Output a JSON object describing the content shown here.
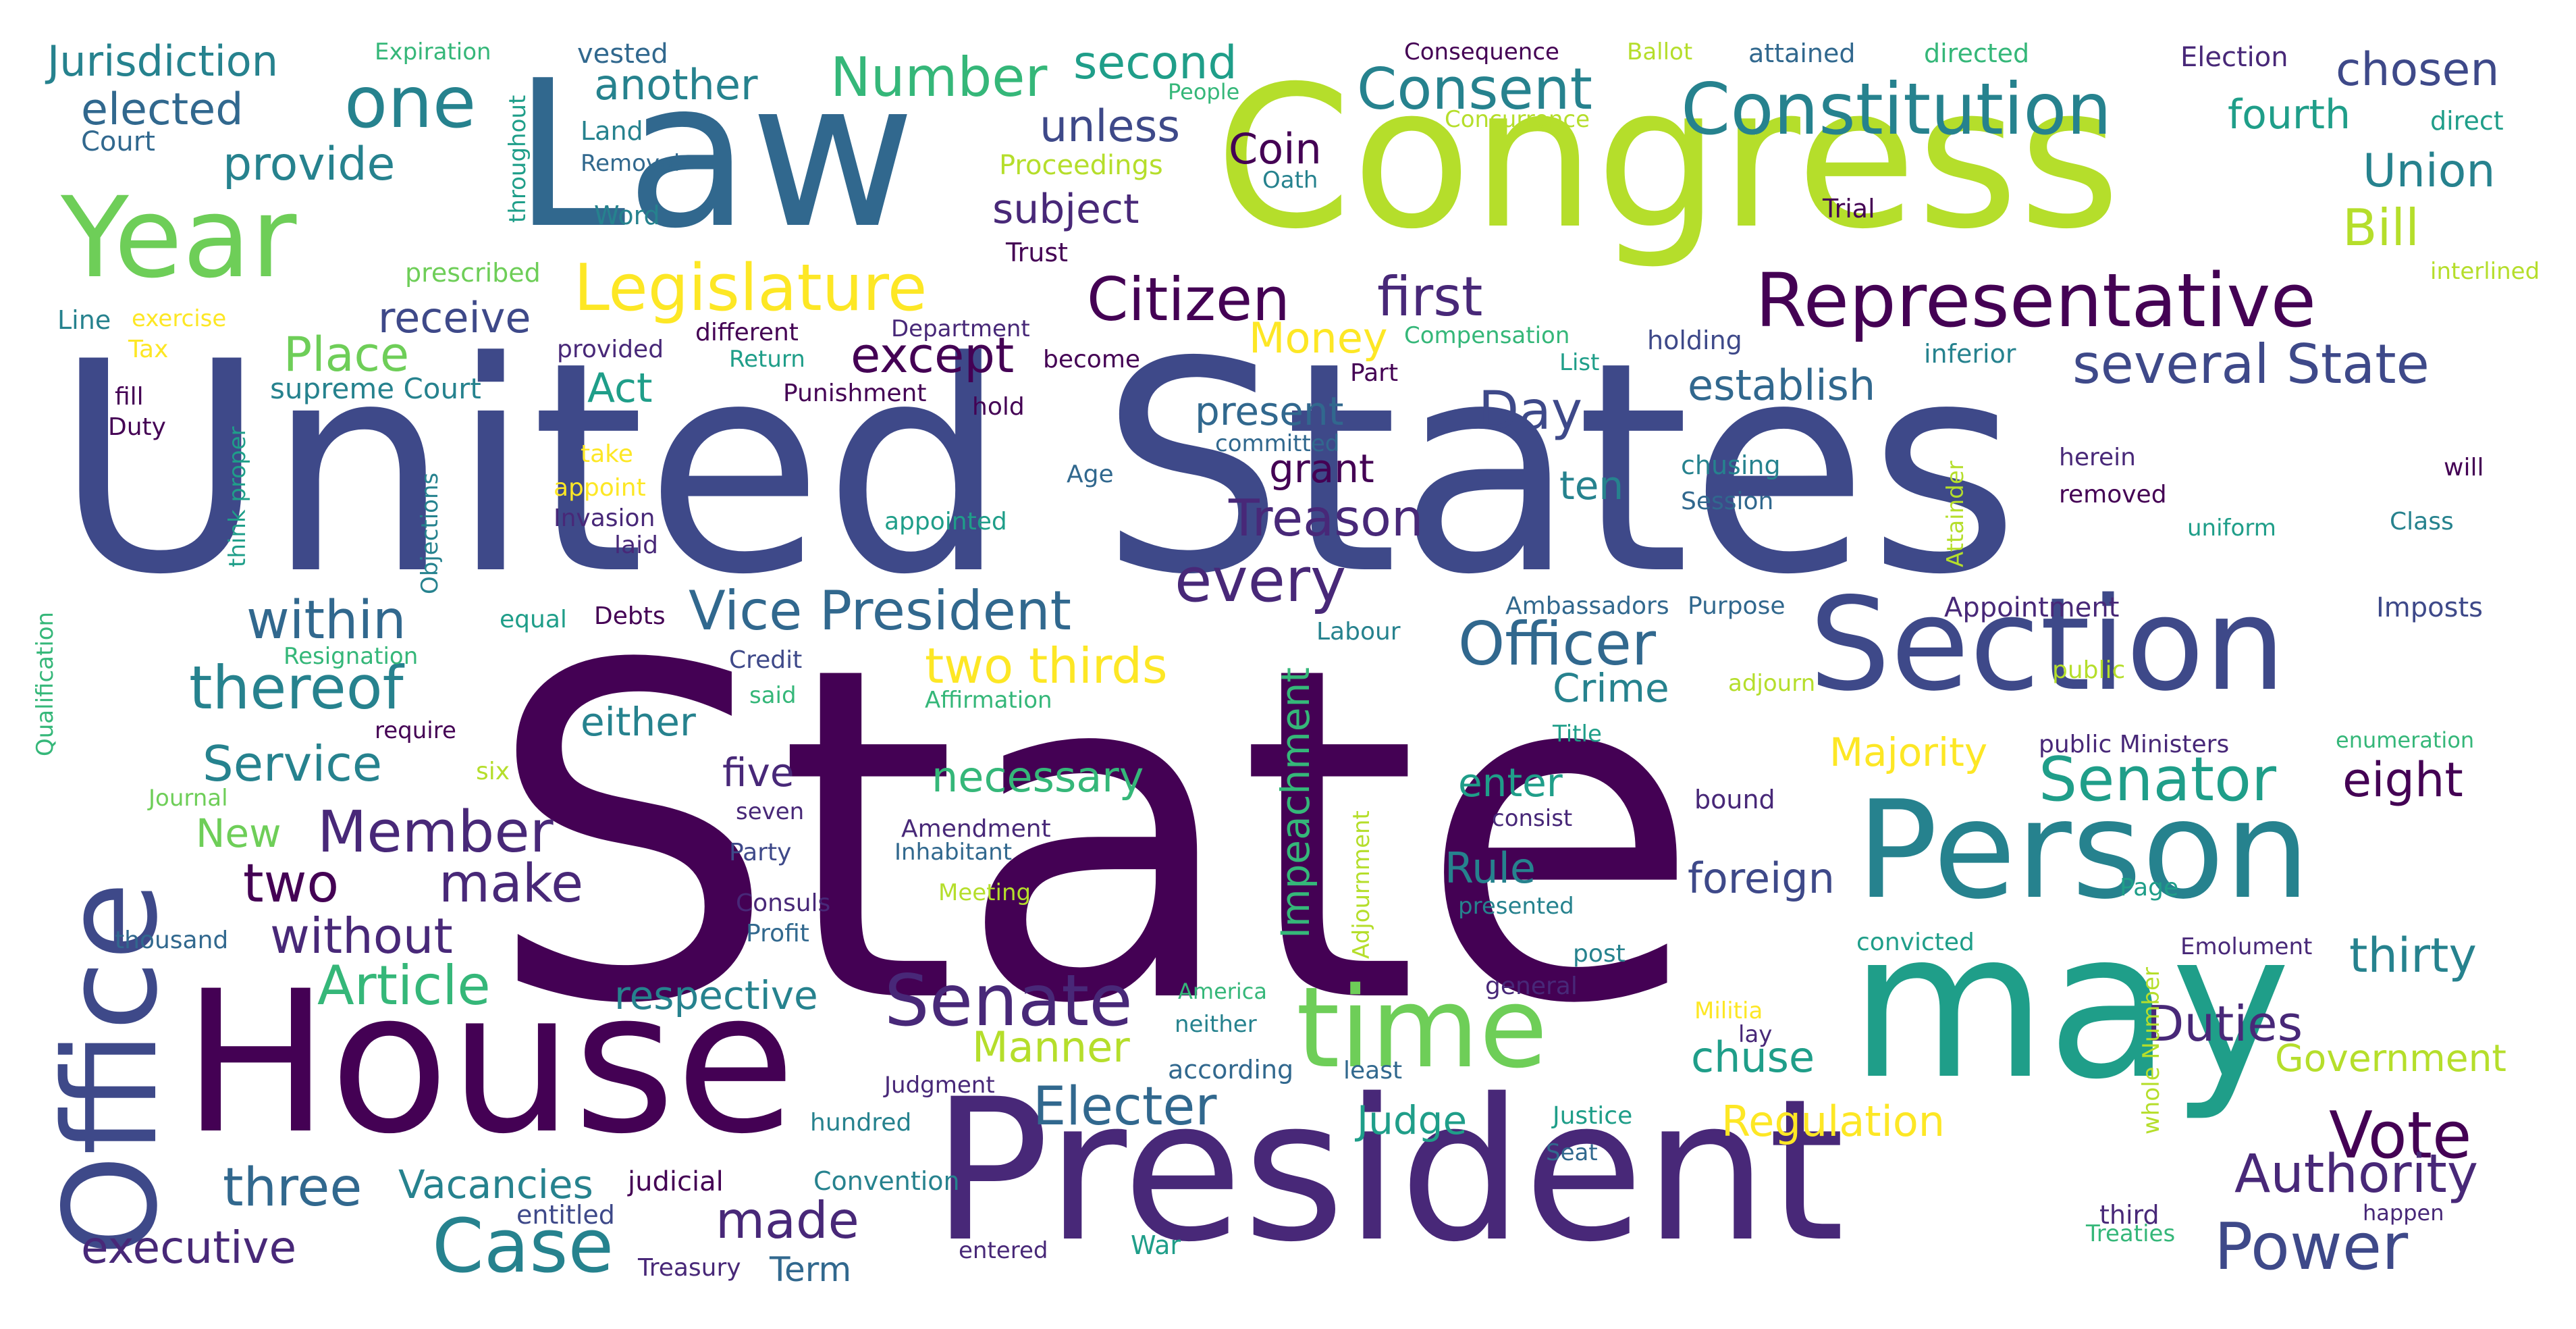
{
  "image": {
    "kind": "word cloud",
    "palette": [
      "#440154",
      "#482878",
      "#3e4989",
      "#31688e",
      "#26828e",
      "#1f9e89",
      "#35b779",
      "#6ece58",
      "#b5de2b",
      "#fde725"
    ]
  },
  "words": [
    {
      "text": "State",
      "color": "#440154"
    },
    {
      "text": "United States",
      "color": "#3e4989"
    },
    {
      "text": "Congress",
      "color": "#b5de2b"
    },
    {
      "text": "Law",
      "color": "#31688e"
    },
    {
      "text": "President",
      "color": "#482878"
    },
    {
      "text": "House",
      "color": "#440154"
    },
    {
      "text": "may",
      "color": "#1f9e89"
    },
    {
      "text": "Office",
      "color": "#3e4989"
    },
    {
      "text": "Person",
      "color": "#26828e"
    },
    {
      "text": "Section",
      "color": "#3e4989"
    },
    {
      "text": "Year",
      "color": "#6ece58"
    },
    {
      "text": "time",
      "color": "#6ece58"
    },
    {
      "text": "Representative",
      "color": "#440154"
    },
    {
      "text": "Constitution",
      "color": "#26828e"
    },
    {
      "text": "one",
      "color": "#26828e"
    },
    {
      "text": "Senate",
      "color": "#482878"
    },
    {
      "text": "Case",
      "color": "#26828e"
    },
    {
      "text": "Legislature",
      "color": "#fde725"
    },
    {
      "text": "Consent",
      "color": "#26828e"
    },
    {
      "text": "Citizen",
      "color": "#440154"
    },
    {
      "text": "Officer",
      "color": "#31688e"
    },
    {
      "text": "Vice President",
      "color": "#31688e"
    },
    {
      "text": "Member",
      "color": "#482878"
    },
    {
      "text": "Senator",
      "color": "#1f9e89"
    },
    {
      "text": "several State",
      "color": "#3e4989"
    },
    {
      "text": "Power",
      "color": "#3e4989"
    },
    {
      "text": "Number",
      "color": "#35b779"
    },
    {
      "text": "thereof",
      "color": "#26828e"
    },
    {
      "text": "every",
      "color": "#482878"
    },
    {
      "text": "Treason",
      "color": "#482878"
    },
    {
      "text": "Vote",
      "color": "#440154"
    },
    {
      "text": "Authority",
      "color": "#482878"
    },
    {
      "text": "Electer",
      "color": "#31688e"
    },
    {
      "text": "Article",
      "color": "#35b779"
    },
    {
      "text": "make",
      "color": "#482878"
    },
    {
      "text": "two",
      "color": "#440154"
    },
    {
      "text": "three",
      "color": "#31688e"
    },
    {
      "text": "made",
      "color": "#482878"
    },
    {
      "text": "Duties",
      "color": "#482878"
    },
    {
      "text": "Day",
      "color": "#3e4989"
    },
    {
      "text": "first",
      "color": "#482878"
    },
    {
      "text": "second",
      "color": "#1f9e89"
    },
    {
      "text": "chosen",
      "color": "#3e4989"
    },
    {
      "text": "Union",
      "color": "#26828e"
    },
    {
      "text": "Bill",
      "color": "#b5de2b"
    },
    {
      "text": "Jurisdiction",
      "color": "#26828e"
    },
    {
      "text": "another",
      "color": "#26828e"
    },
    {
      "text": "elected",
      "color": "#31688e"
    },
    {
      "text": "provide",
      "color": "#26828e"
    },
    {
      "text": "unless",
      "color": "#3e4989"
    },
    {
      "text": "subject",
      "color": "#482878"
    },
    {
      "text": "fourth",
      "color": "#1f9e89"
    },
    {
      "text": "Coin",
      "color": "#440154"
    },
    {
      "text": "receive",
      "color": "#3e4989"
    },
    {
      "text": "Place",
      "color": "#6ece58"
    },
    {
      "text": "except",
      "color": "#440154"
    },
    {
      "text": "Money",
      "color": "#fde725"
    },
    {
      "text": "establish",
      "color": "#31688e"
    },
    {
      "text": "Act",
      "color": "#1f9e89"
    },
    {
      "text": "present",
      "color": "#31688e"
    },
    {
      "text": "grant",
      "color": "#440154"
    },
    {
      "text": "ten",
      "color": "#26828e"
    },
    {
      "text": "within",
      "color": "#31688e"
    },
    {
      "text": "two thirds",
      "color": "#fde725"
    },
    {
      "text": "Service",
      "color": "#26828e"
    },
    {
      "text": "either",
      "color": "#26828e"
    },
    {
      "text": "Crime",
      "color": "#26828e"
    },
    {
      "text": "necessary",
      "color": "#35b779"
    },
    {
      "text": "Majority",
      "color": "#fde725"
    },
    {
      "text": "eight",
      "color": "#440154"
    },
    {
      "text": "five",
      "color": "#482878"
    },
    {
      "text": "enter",
      "color": "#1f9e89"
    },
    {
      "text": "Rule",
      "color": "#26828e"
    },
    {
      "text": "foreign",
      "color": "#3e4989"
    },
    {
      "text": "without",
      "color": "#482878"
    },
    {
      "text": "New",
      "color": "#6ece58"
    },
    {
      "text": "respective",
      "color": "#26828e"
    },
    {
      "text": "Manner",
      "color": "#b5de2b"
    },
    {
      "text": "chuse",
      "color": "#1f9e89"
    },
    {
      "text": "thirty",
      "color": "#26828e"
    },
    {
      "text": "Government",
      "color": "#b5de2b"
    },
    {
      "text": "Regulation",
      "color": "#fde725"
    },
    {
      "text": "Judge",
      "color": "#1f9e89"
    },
    {
      "text": "Vacancies",
      "color": "#26828e"
    },
    {
      "text": "executive",
      "color": "#482878"
    },
    {
      "text": "Term",
      "color": "#31688e"
    },
    {
      "text": "Impeachment",
      "color": "#35b779"
    },
    {
      "text": "Adjournment",
      "color": "#b5de2b"
    },
    {
      "text": "throughout",
      "color": "#1f9e89"
    },
    {
      "text": "Qualification",
      "color": "#35b779"
    },
    {
      "text": "Objections",
      "color": "#26828e"
    },
    {
      "text": "think proper",
      "color": "#1f9e89"
    },
    {
      "text": "Attainder",
      "color": "#b5de2b"
    },
    {
      "text": "whole Number",
      "color": "#b5de2b"
    },
    {
      "text": "Expiration",
      "color": "#35b779"
    },
    {
      "text": "vested",
      "color": "#31688e"
    },
    {
      "text": "Consequence",
      "color": "#440154"
    },
    {
      "text": "Ballot",
      "color": "#b5de2b"
    },
    {
      "text": "attained",
      "color": "#31688e"
    },
    {
      "text": "directed",
      "color": "#35b779"
    },
    {
      "text": "Election",
      "color": "#482878"
    },
    {
      "text": "Land",
      "color": "#26828e"
    },
    {
      "text": "Removal",
      "color": "#31688e"
    },
    {
      "text": "People",
      "color": "#35b779"
    },
    {
      "text": "Concurrence",
      "color": "#b5de2b"
    },
    {
      "text": "direct",
      "color": "#1f9e89"
    },
    {
      "text": "Court",
      "color": "#31688e"
    },
    {
      "text": "Proceedings",
      "color": "#b5de2b"
    },
    {
      "text": "Oath",
      "color": "#26828e"
    },
    {
      "text": "Word",
      "color": "#26828e"
    },
    {
      "text": "Trial",
      "color": "#440154"
    },
    {
      "text": "Trust",
      "color": "#440154"
    },
    {
      "text": "prescribed",
      "color": "#6ece58"
    },
    {
      "text": "interlined",
      "color": "#b5de2b"
    },
    {
      "text": "Line",
      "color": "#26828e"
    },
    {
      "text": "exercise",
      "color": "#fde725"
    },
    {
      "text": "different",
      "color": "#440154"
    },
    {
      "text": "Department",
      "color": "#482878"
    },
    {
      "text": "Compensation",
      "color": "#35b779"
    },
    {
      "text": "holding",
      "color": "#3e4989"
    },
    {
      "text": "Tax",
      "color": "#fde725"
    },
    {
      "text": "provided",
      "color": "#482878"
    },
    {
      "text": "Return",
      "color": "#1f9e89"
    },
    {
      "text": "become",
      "color": "#440154"
    },
    {
      "text": "List",
      "color": "#1f9e89"
    },
    {
      "text": "inferior",
      "color": "#26828e"
    },
    {
      "text": "fill",
      "color": "#440154"
    },
    {
      "text": "supreme Court",
      "color": "#26828e"
    },
    {
      "text": "Punishment",
      "color": "#440154"
    },
    {
      "text": "Part",
      "color": "#440154"
    },
    {
      "text": "hold",
      "color": "#440154"
    },
    {
      "text": "Duty",
      "color": "#440154"
    },
    {
      "text": "take",
      "color": "#fde725"
    },
    {
      "text": "committed",
      "color": "#31688e"
    },
    {
      "text": "chusing",
      "color": "#26828e"
    },
    {
      "text": "herein",
      "color": "#482878"
    },
    {
      "text": "will",
      "color": "#440154"
    },
    {
      "text": "Age",
      "color": "#31688e"
    },
    {
      "text": "appoint",
      "color": "#fde725"
    },
    {
      "text": "Session",
      "color": "#31688e"
    },
    {
      "text": "removed",
      "color": "#440154"
    },
    {
      "text": "Invasion",
      "color": "#482878"
    },
    {
      "text": "appointed",
      "color": "#1f9e89"
    },
    {
      "text": "uniform",
      "color": "#1f9e89"
    },
    {
      "text": "Class",
      "color": "#26828e"
    },
    {
      "text": "laid",
      "color": "#482878"
    },
    {
      "text": "Ambassadors",
      "color": "#31688e"
    },
    {
      "text": "Purpose",
      "color": "#31688e"
    },
    {
      "text": "Appointment",
      "color": "#482878"
    },
    {
      "text": "Imposts",
      "color": "#3e4989"
    },
    {
      "text": "equal",
      "color": "#1f9e89"
    },
    {
      "text": "Debts",
      "color": "#440154"
    },
    {
      "text": "Labour",
      "color": "#26828e"
    },
    {
      "text": "Resignation",
      "color": "#35b779"
    },
    {
      "text": "Credit",
      "color": "#3e4989"
    },
    {
      "text": "adjourn",
      "color": "#b5de2b"
    },
    {
      "text": "public",
      "color": "#b5de2b"
    },
    {
      "text": "said",
      "color": "#35b779"
    },
    {
      "text": "Affirmation",
      "color": "#35b779"
    },
    {
      "text": "require",
      "color": "#440154"
    },
    {
      "text": "Title",
      "color": "#1f9e89"
    },
    {
      "text": "public Ministers",
      "color": "#482878"
    },
    {
      "text": "enumeration",
      "color": "#35b779"
    },
    {
      "text": "six",
      "color": "#b5de2b"
    },
    {
      "text": "Journal",
      "color": "#6ece58"
    },
    {
      "text": "seven",
      "color": "#482878"
    },
    {
      "text": "consist",
      "color": "#482878"
    },
    {
      "text": "bound",
      "color": "#482878"
    },
    {
      "text": "Amendment",
      "color": "#482878"
    },
    {
      "text": "Party",
      "color": "#3e4989"
    },
    {
      "text": "Inhabitant",
      "color": "#31688e"
    },
    {
      "text": "presented",
      "color": "#26828e"
    },
    {
      "text": "Page",
      "color": "#1f9e89"
    },
    {
      "text": "Consuls",
      "color": "#482878"
    },
    {
      "text": "Meeting",
      "color": "#b5de2b"
    },
    {
      "text": "Profit",
      "color": "#31688e"
    },
    {
      "text": "convicted",
      "color": "#1f9e89"
    },
    {
      "text": "Emolument",
      "color": "#482878"
    },
    {
      "text": "thousand",
      "color": "#31688e"
    },
    {
      "text": "post",
      "color": "#26828e"
    },
    {
      "text": "America",
      "color": "#35b779"
    },
    {
      "text": "general",
      "color": "#482878"
    },
    {
      "text": "neither",
      "color": "#26828e"
    },
    {
      "text": "Militia",
      "color": "#fde725"
    },
    {
      "text": "lay",
      "color": "#482878"
    },
    {
      "text": "according",
      "color": "#31688e"
    },
    {
      "text": "least",
      "color": "#31688e"
    },
    {
      "text": "Judgment",
      "color": "#482878"
    },
    {
      "text": "hundred",
      "color": "#26828e"
    },
    {
      "text": "Justice",
      "color": "#1f9e89"
    },
    {
      "text": "Seat",
      "color": "#31688e"
    },
    {
      "text": "judicial",
      "color": "#440154"
    },
    {
      "text": "Convention",
      "color": "#26828e"
    },
    {
      "text": "entitled",
      "color": "#3e4989"
    },
    {
      "text": "third",
      "color": "#482878"
    },
    {
      "text": "happen",
      "color": "#482878"
    },
    {
      "text": "Treaties",
      "color": "#35b779"
    },
    {
      "text": "Treasury",
      "color": "#482878"
    },
    {
      "text": "entered",
      "color": "#482878"
    },
    {
      "text": "War",
      "color": "#1f9e89"
    }
  ]
}
